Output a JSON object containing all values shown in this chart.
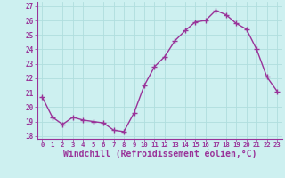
{
  "x": [
    0,
    1,
    2,
    3,
    4,
    5,
    6,
    7,
    8,
    9,
    10,
    11,
    12,
    13,
    14,
    15,
    16,
    17,
    18,
    19,
    20,
    21,
    22,
    23
  ],
  "y": [
    20.7,
    19.3,
    18.8,
    19.3,
    19.1,
    19.0,
    18.9,
    18.4,
    18.3,
    19.6,
    21.5,
    22.8,
    23.5,
    24.6,
    25.3,
    25.9,
    26.0,
    26.7,
    26.4,
    25.8,
    25.4,
    24.0,
    22.1,
    21.1
  ],
  "line_color": "#993399",
  "marker": "+",
  "markersize": 4,
  "markeredgewidth": 1.0,
  "linewidth": 1.0,
  "xlabel": "Windchill (Refroidissement éolien,°C)",
  "xlabel_fontsize": 7,
  "xtick_labels": [
    "0",
    "1",
    "2",
    "3",
    "4",
    "5",
    "6",
    "7",
    "8",
    "9",
    "10",
    "11",
    "12",
    "13",
    "14",
    "15",
    "16",
    "17",
    "18",
    "19",
    "20",
    "21",
    "22",
    "23"
  ],
  "ytick_vals": [
    18,
    19,
    20,
    21,
    22,
    23,
    24,
    25,
    26,
    27
  ],
  "ytick_labels": [
    "18",
    "19",
    "20",
    "21",
    "22",
    "23",
    "24",
    "25",
    "26",
    "27"
  ],
  "ylim": [
    17.8,
    27.3
  ],
  "xlim": [
    -0.5,
    23.5
  ],
  "bg_color": "#cdf0f0",
  "grid_color": "#b0dede",
  "tick_color": "#993399",
  "label_color": "#993399",
  "spine_color": "#993399"
}
